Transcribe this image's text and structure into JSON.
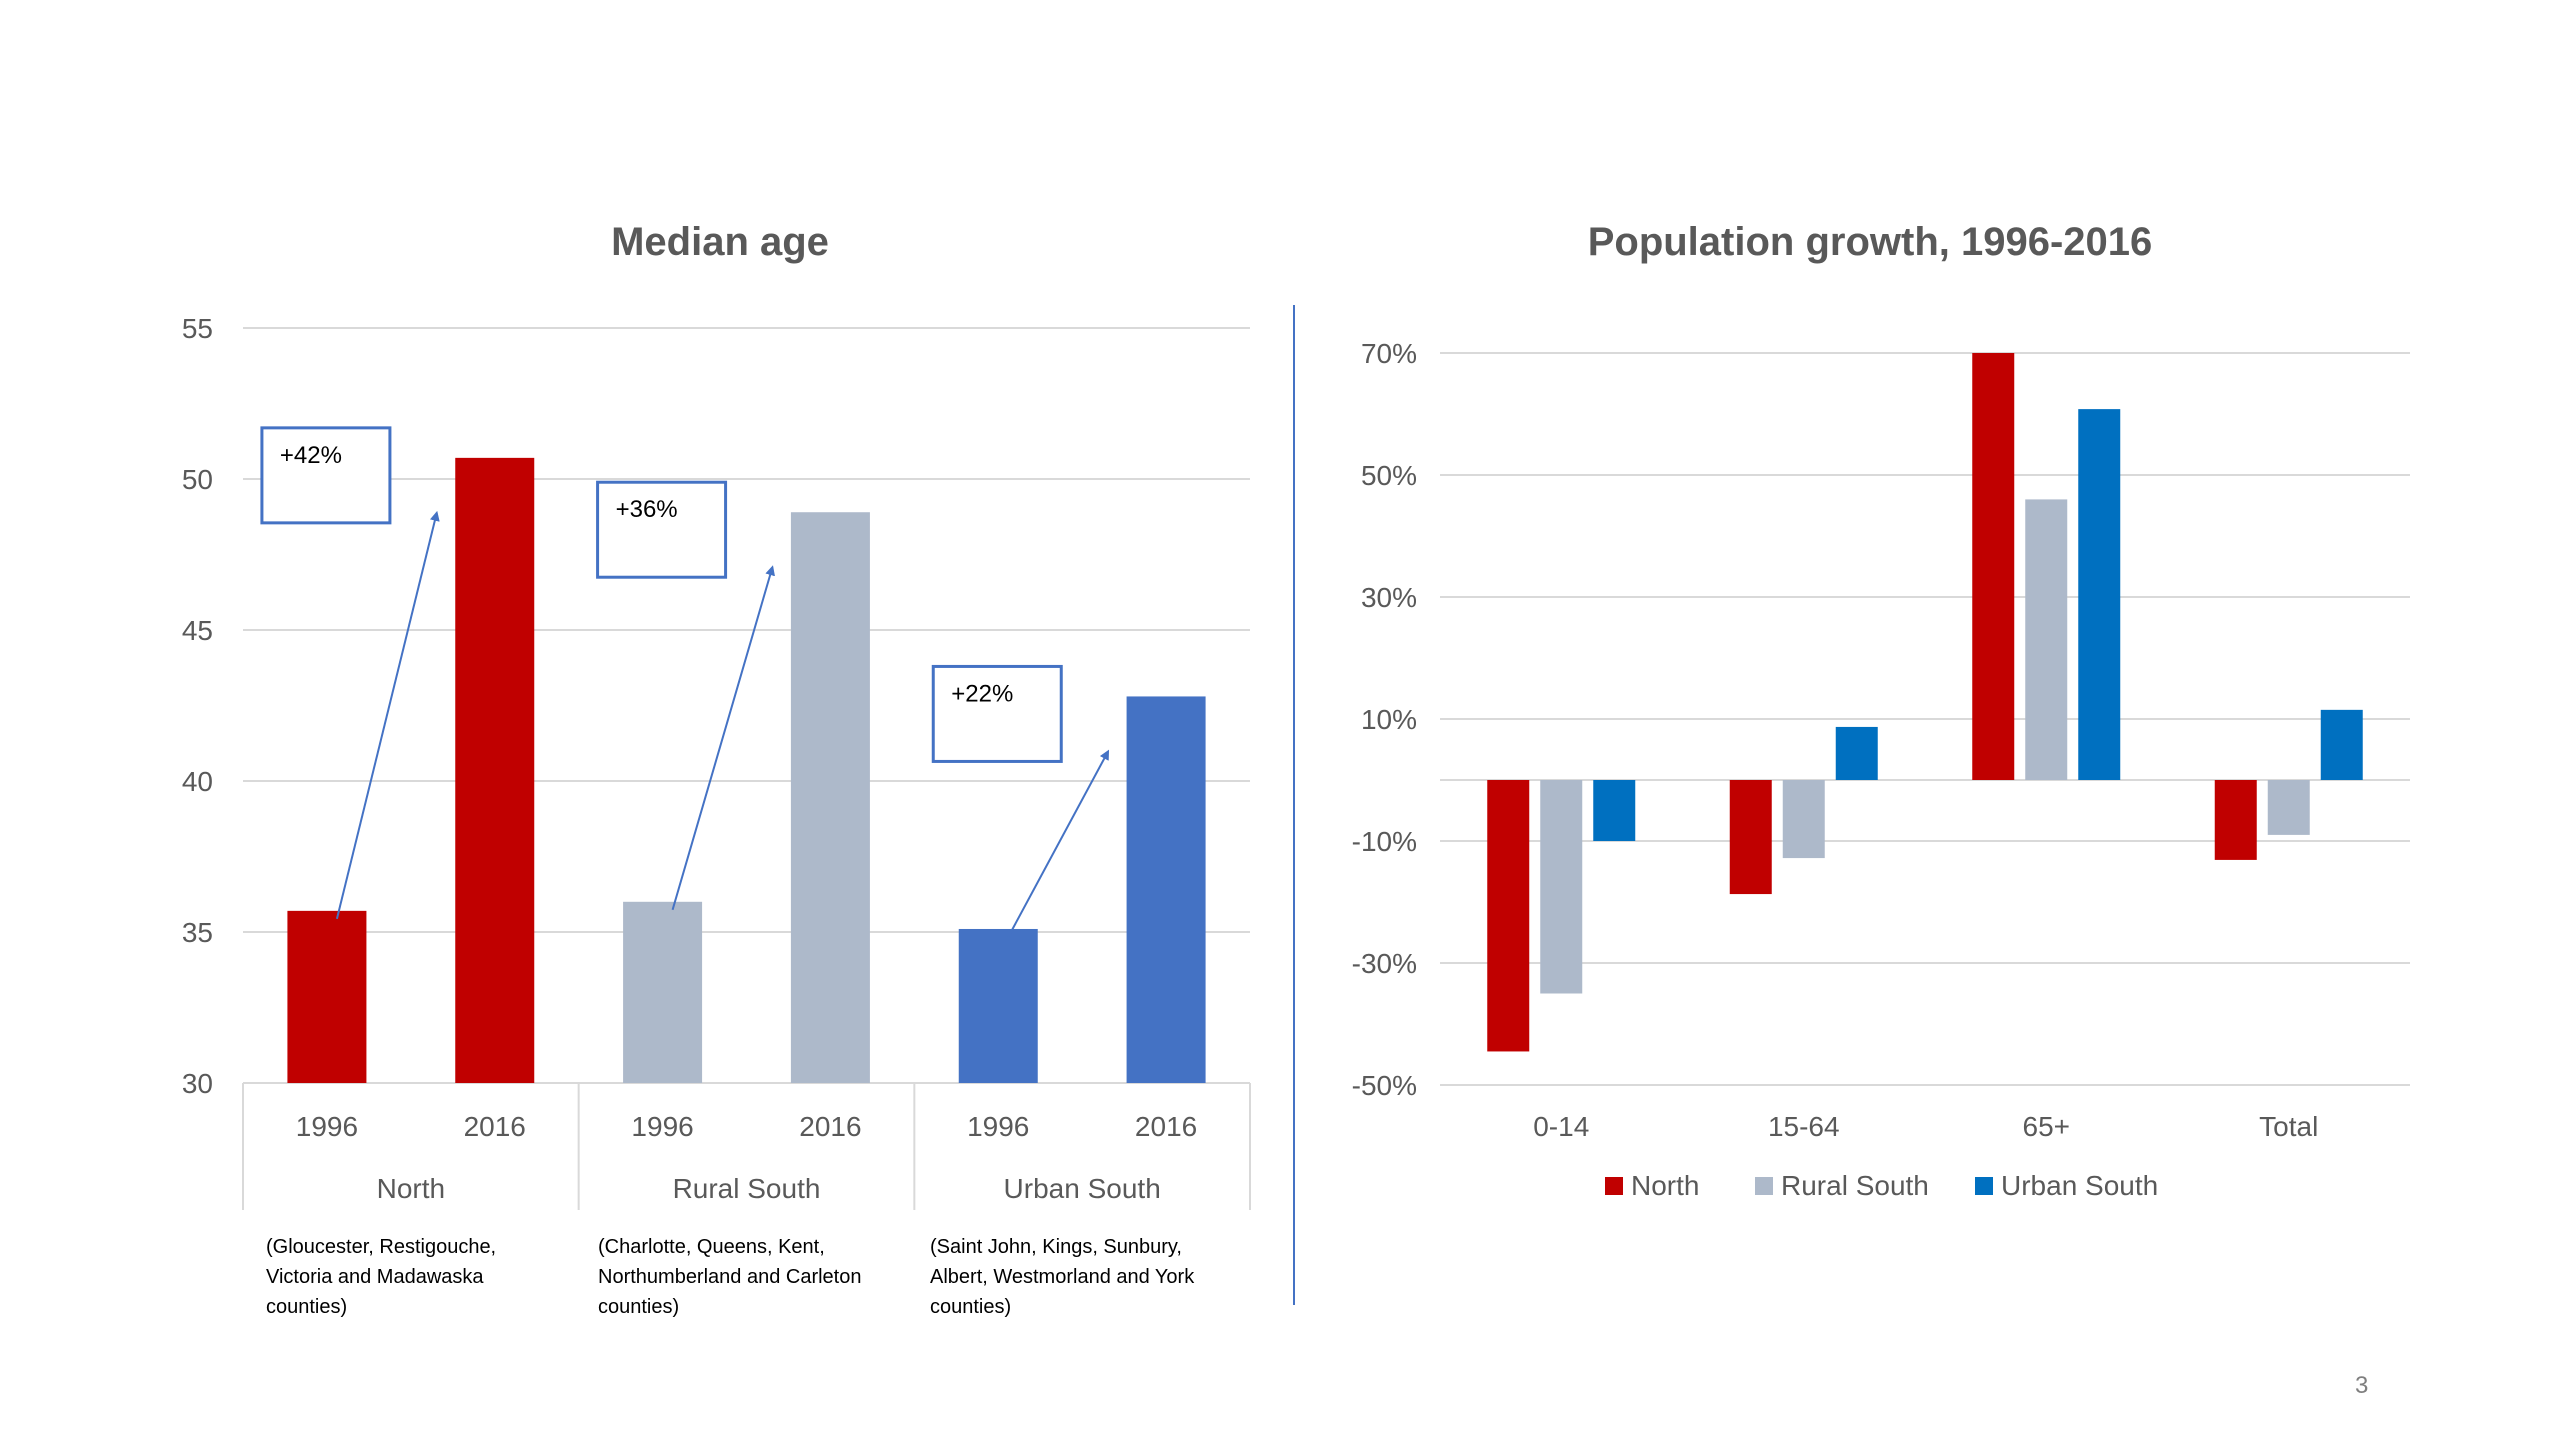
{
  "slide": {
    "page_number": "3",
    "notes": [
      "(Gloucester, Restigouche, Victoria and Madawaska counties)",
      "(Charlotte, Queens, Kent, Northumberland and Carleton counties)",
      "(Saint John, Kings, Sunbury, Albert, Westmorland and York counties)"
    ]
  },
  "chart_data": [
    {
      "type": "bar",
      "title": "Median age",
      "ylim": [
        30,
        55
      ],
      "yticks": [
        "30",
        "35",
        "40",
        "45",
        "50",
        "55"
      ],
      "grid": true,
      "groups": [
        {
          "name": "North",
          "categories": [
            "1996",
            "2016"
          ],
          "values": [
            35.7,
            50.7
          ],
          "color": "#c00000",
          "annotation": "+42%"
        },
        {
          "name": "Rural South",
          "categories": [
            "1996",
            "2016"
          ],
          "values": [
            36.0,
            48.9
          ],
          "color": "#adb9ca",
          "annotation": "+36%"
        },
        {
          "name": "Urban South",
          "categories": [
            "1996",
            "2016"
          ],
          "values": [
            35.1,
            42.8
          ],
          "color": "#4472c4",
          "annotation": "+22%"
        }
      ]
    },
    {
      "type": "bar",
      "title": "Population growth, 1996-2016",
      "categories": [
        "0-14",
        "15-64",
        "65+",
        "Total"
      ],
      "ylim": [
        -50,
        70
      ],
      "yticks": [
        "-50%",
        "-30%",
        "-10%",
        "10%",
        "30%",
        "50%",
        "70%"
      ],
      "grid": true,
      "legend": "bottom",
      "series": [
        {
          "name": "North",
          "color": "#c00000",
          "values": [
            -44.5,
            -18.7,
            70.0,
            -13.1
          ]
        },
        {
          "name": "Rural South",
          "color": "#adb9ca",
          "values": [
            -35.0,
            -12.8,
            46.0,
            -9.0
          ]
        },
        {
          "name": "Urban South",
          "color": "#0070c0",
          "values": [
            -10.0,
            8.7,
            60.8,
            11.5
          ]
        }
      ]
    }
  ]
}
